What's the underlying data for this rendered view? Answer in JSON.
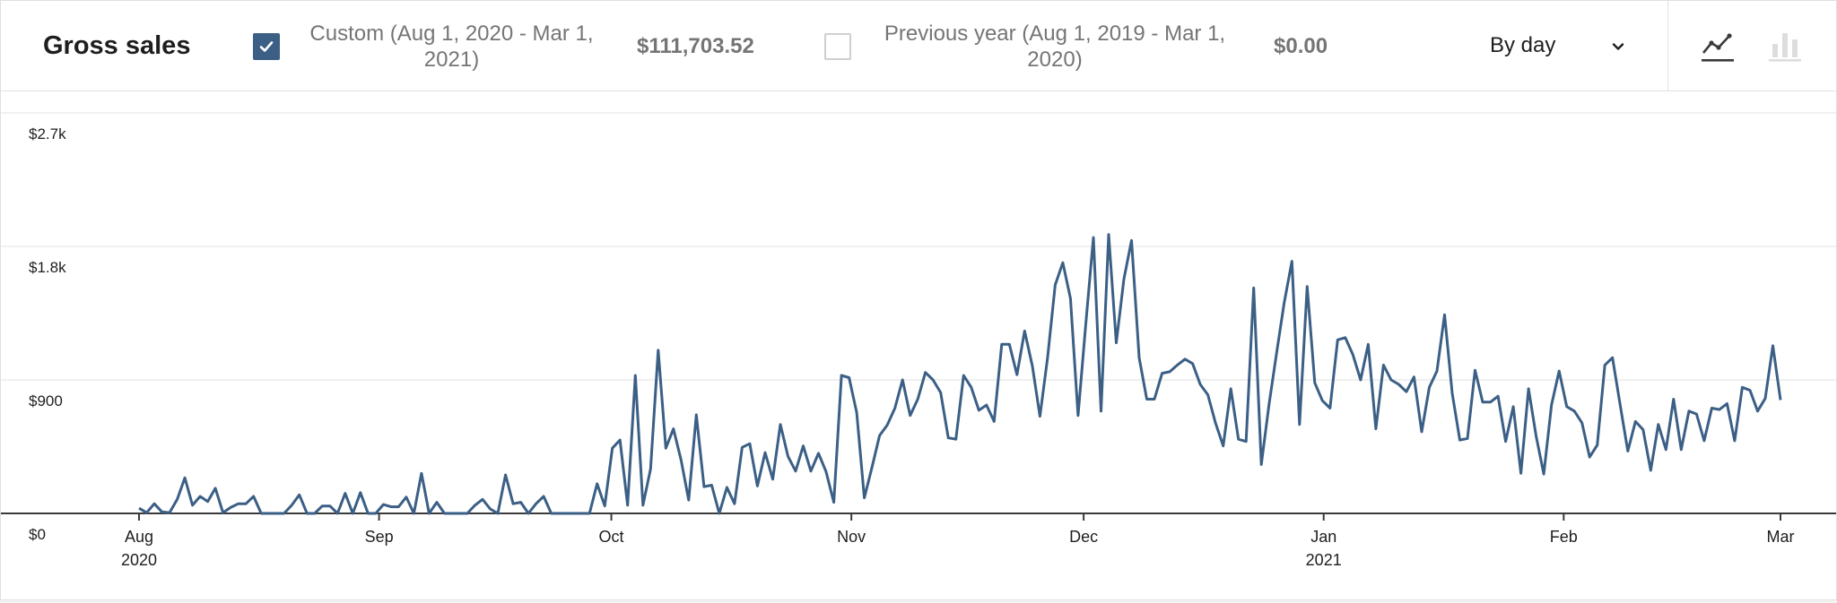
{
  "header": {
    "title": "Gross sales",
    "primary": {
      "label_line1": "Custom (Aug 1, 2020 - Mar 1,",
      "label_line2": "2021)",
      "total": "$111,703.52",
      "checked": true,
      "color": "#3b5f85"
    },
    "secondary": {
      "label_line1": "Previous year (Aug 1, 2019 - Mar 1,",
      "label_line2": "2020)",
      "total": "$0.00",
      "checked": false
    },
    "interval": "By day",
    "chart_types": [
      "line-chart-icon",
      "bar-chart-icon"
    ],
    "selected_chart_type": "line"
  },
  "chart_data": {
    "type": "line",
    "series": [
      {
        "color": "#3b5f85",
        "values": [
          35,
          5,
          65,
          10,
          5,
          95,
          240,
          55,
          115,
          80,
          170,
          5,
          40,
          65,
          65,
          115,
          0,
          0,
          0,
          0,
          55,
          125,
          0,
          0,
          50,
          50,
          0,
          135,
          0,
          140,
          0,
          0,
          60,
          45,
          45,
          110,
          0,
          270,
          0,
          75,
          0,
          0,
          0,
          0,
          55,
          95,
          30,
          0,
          260,
          65,
          75,
          0,
          65,
          115,
          0,
          0,
          0,
          0,
          0,
          0,
          200,
          50,
          440,
          495,
          55,
          930,
          55,
          300,
          1100,
          440,
          570,
          360,
          90,
          665,
          180,
          190,
          0,
          175,
          65,
          445,
          470,
          185,
          410,
          230,
          600,
          385,
          285,
          455,
          285,
          405,
          280,
          75,
          930,
          915,
          680,
          105,
          310,
          525,
          595,
          710,
          900,
          660,
          770,
          950,
          900,
          815,
          510,
          500,
          930,
          850,
          695,
          730,
          620,
          1140,
          1140,
          935,
          1230,
          995,
          655,
          1050,
          1540,
          1690,
          1450,
          660,
          1270,
          1860,
          690,
          1880,
          1150,
          1580,
          1840,
          1050,
          770,
          770,
          945,
          955,
          1000,
          1040,
          1010,
          870,
          800,
          610,
          455,
          840,
          500,
          485,
          1520,
          330,
          730,
          1080,
          1420,
          1700,
          600,
          1530,
          880,
          760,
          710,
          1170,
          1185,
          1070,
          900,
          1140,
          570,
          1000,
          900,
          870,
          820,
          920,
          550,
          850,
          960,
          1340,
          810,
          495,
          505,
          965,
          750,
          750,
          790,
          485,
          720,
          270,
          840,
          520,
          265,
          730,
          960,
          720,
          690,
          610,
          380,
          460,
          1000,
          1050,
          730,
          420,
          620,
          565,
          290,
          600,
          430,
          770,
          430,
          690,
          670,
          490,
          710,
          700,
          740,
          490,
          850,
          830,
          690,
          775,
          1130,
          765
        ]
      }
    ],
    "x_start": "2020-08-01",
    "x_end": "2021-03-01",
    "x_ticks": [
      {
        "date": "2020-08-01",
        "label": "Aug",
        "year": "2020"
      },
      {
        "date": "2020-09-01",
        "label": "Sep",
        "year": ""
      },
      {
        "date": "2020-10-01",
        "label": "Oct",
        "year": ""
      },
      {
        "date": "2020-11-01",
        "label": "Nov",
        "year": ""
      },
      {
        "date": "2020-12-01",
        "label": "Dec",
        "year": ""
      },
      {
        "date": "2021-01-01",
        "label": "Jan",
        "year": "2021"
      },
      {
        "date": "2021-02-01",
        "label": "Feb",
        "year": ""
      },
      {
        "date": "2021-03-01",
        "label": "Mar",
        "year": ""
      }
    ],
    "y_ticks": [
      {
        "value": 0,
        "label": "$0"
      },
      {
        "value": 900,
        "label": "$900"
      },
      {
        "value": 1800,
        "label": "$1.8k"
      },
      {
        "value": 2700,
        "label": "$2.7k"
      }
    ],
    "ylim": [
      0,
      2700
    ],
    "grid": true,
    "legend": "top"
  }
}
